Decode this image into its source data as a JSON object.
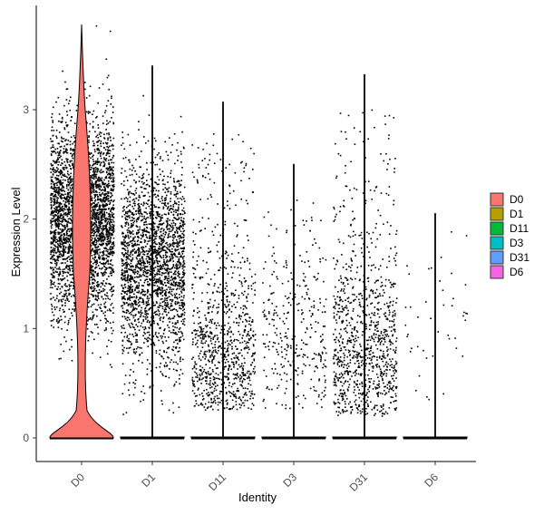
{
  "chart_data": {
    "type": "violin",
    "categories": [
      "D0",
      "D1",
      "D11",
      "D3",
      "D31",
      "D6"
    ],
    "xlabel": "Identity",
    "ylabel": "Expression Level",
    "ylim": [
      -0.2,
      3.95
    ],
    "yticks": [
      0,
      1,
      2,
      3
    ],
    "series": [
      {
        "name": "D0",
        "color": "#F8766D",
        "max": 3.78,
        "points": 3200,
        "nonzero_range": [
          0.25,
          3.78
        ],
        "nonzero_center": 2.0,
        "violin_zero_halfwidth": 0.45,
        "violin_bulge_center": 2.1
      },
      {
        "name": "D1",
        "color": "#B79F00",
        "max": 3.4,
        "points": 2200,
        "nonzero_range": [
          0.2,
          3.4
        ],
        "nonzero_center": 1.6,
        "violin_zero_halfwidth": 0.45,
        "violin_bulge_center": 0
      },
      {
        "name": "D11",
        "color": "#00BA38",
        "max": 3.07,
        "points": 900,
        "nonzero_range": [
          0.25,
          3.07
        ],
        "nonzero_center": 0.6,
        "violin_zero_halfwidth": 0.45,
        "violin_bulge_center": 0
      },
      {
        "name": "D3",
        "color": "#00BFC4",
        "max": 2.5,
        "points": 320,
        "nonzero_range": [
          0.25,
          2.5
        ],
        "nonzero_center": 0.9,
        "violin_zero_halfwidth": 0.45,
        "violin_bulge_center": 0
      },
      {
        "name": "D31",
        "color": "#619CFF",
        "max": 3.32,
        "points": 1000,
        "nonzero_range": [
          0.2,
          3.32
        ],
        "nonzero_center": 0.7,
        "violin_zero_halfwidth": 0.45,
        "violin_bulge_center": 0
      },
      {
        "name": "D6",
        "color": "#F564E3",
        "max": 2.05,
        "points": 45,
        "nonzero_range": [
          0.35,
          2.05
        ],
        "nonzero_center": 1.0,
        "violin_zero_halfwidth": 0.45,
        "violin_bulge_center": 0
      }
    ],
    "legend": {
      "placement": "right",
      "entries": [
        "D0",
        "D1",
        "D11",
        "D3",
        "D31",
        "D6"
      ]
    },
    "grid": false
  }
}
